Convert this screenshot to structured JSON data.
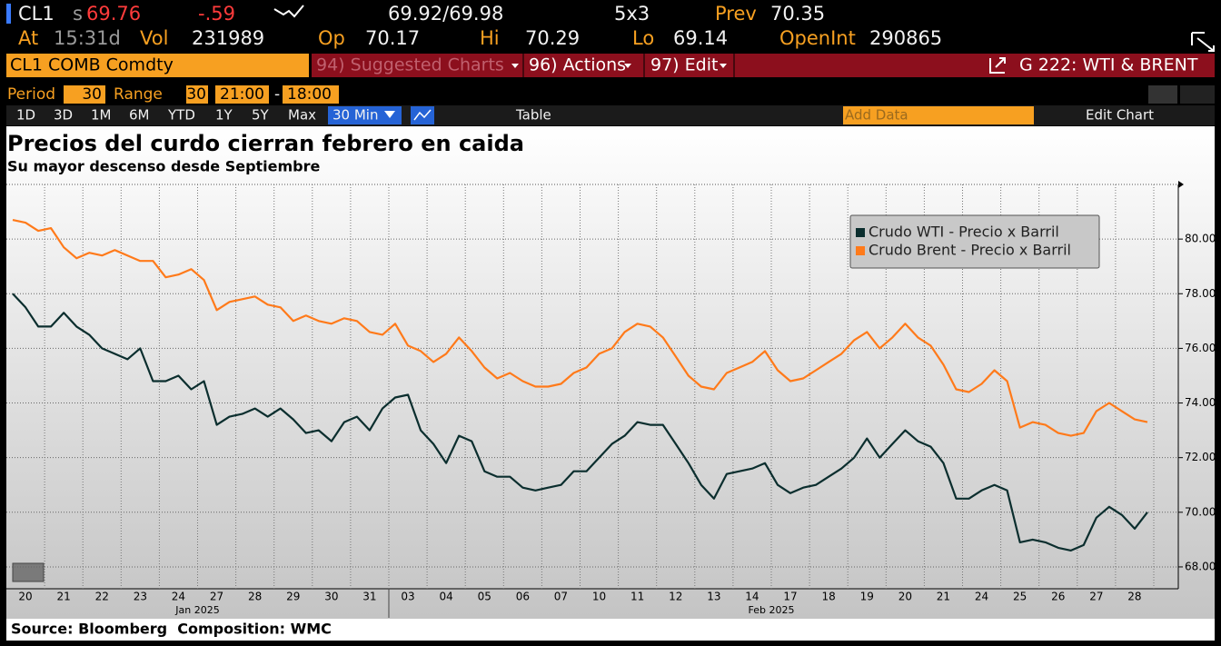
{
  "header": {
    "ticker": "CL1",
    "last_prefix": "s",
    "last": "69.76",
    "change": "-.59",
    "bid_ask": "69.92/69.98",
    "size": "5x3",
    "prev_label": "Prev",
    "prev": "70.35",
    "at_label": "At",
    "at": "15:31d",
    "vol_label": "Vol",
    "vol": "231989",
    "open_label": "Op",
    "open": "70.17",
    "high_label": "Hi",
    "high": "70.29",
    "low_label": "Lo",
    "low": "69.14",
    "oi_label": "OpenInt",
    "oi": "290865"
  },
  "toolbar": {
    "security": "CL1 COMB Comdty",
    "suggested": "94) Suggested Charts",
    "actions": "96) Actions",
    "edit": "97) Edit",
    "chart_name": "G 222: WTI & BRENT",
    "period_label": "Period",
    "period": "30",
    "range_label": "Range",
    "range": "30",
    "range_start": "21:00",
    "range_sep": "-",
    "range_end": "18:00",
    "buttons": [
      "1D",
      "3D",
      "1M",
      "6M",
      "YTD",
      "1Y",
      "5Y",
      "Max"
    ],
    "interval": "30 Min",
    "table": "Table",
    "add_data": "Add Data",
    "edit_chart": "Edit Chart"
  },
  "chart_data": {
    "type": "line",
    "title": "Precios del curdo cierran febrero en caida",
    "subtitle": "Su mayor descenso desde Septiembre",
    "categories": [
      null,
      "20",
      null,
      null,
      "21",
      null,
      null,
      "22",
      null,
      null,
      "23",
      null,
      null,
      "24",
      null,
      null,
      "27",
      null,
      null,
      "28",
      null,
      null,
      "29",
      null,
      null,
      "30",
      null,
      null,
      "31",
      null,
      null,
      "03",
      null,
      null,
      "04",
      null,
      null,
      "05",
      null,
      null,
      "06",
      null,
      null,
      "07",
      null,
      null,
      "10",
      null,
      null,
      "11",
      null,
      null,
      "12",
      null,
      null,
      "13",
      null,
      null,
      "14",
      null,
      null,
      "17",
      null,
      null,
      "18",
      null,
      null,
      "19",
      null,
      null,
      "20",
      null,
      null,
      "21",
      null,
      null,
      "24",
      null,
      null,
      "25",
      null,
      null,
      "26",
      null,
      null,
      "27",
      null,
      null,
      "28",
      null
    ],
    "month_labels": [
      "Jan 2025",
      "Feb 2025"
    ],
    "series": [
      {
        "name": "Crudo WTI - Precio x Barril",
        "color": "#0b2e2e",
        "values": [
          78.0,
          77.5,
          76.8,
          76.8,
          77.3,
          76.8,
          76.5,
          76.0,
          75.8,
          75.6,
          76.0,
          74.8,
          74.8,
          75.0,
          74.5,
          74.8,
          73.2,
          73.5,
          73.6,
          73.8,
          73.5,
          73.8,
          73.4,
          72.9,
          73.0,
          72.6,
          73.3,
          73.5,
          73.0,
          73.8,
          74.2,
          74.3,
          73.0,
          72.5,
          71.8,
          72.8,
          72.6,
          71.5,
          71.3,
          71.3,
          70.9,
          70.8,
          70.9,
          71.0,
          71.5,
          71.5,
          72.0,
          72.5,
          72.8,
          73.3,
          73.2,
          73.2,
          72.5,
          71.8,
          71.0,
          70.5,
          71.4,
          71.5,
          71.6,
          71.8,
          71.0,
          70.7,
          70.9,
          71.0,
          71.3,
          71.6,
          72.0,
          72.7,
          72.0,
          72.5,
          73.0,
          72.6,
          72.4,
          71.8,
          70.5,
          70.5,
          70.8,
          71.0,
          70.8,
          68.9,
          69.0,
          68.9,
          68.7,
          68.6,
          68.8,
          69.8,
          70.2,
          69.9,
          69.4,
          70.0
        ]
      },
      {
        "name": "Crudo Brent - Precio x Barril",
        "color": "#ff7a1a",
        "values": [
          80.7,
          80.6,
          80.3,
          80.4,
          79.7,
          79.3,
          79.5,
          79.4,
          79.6,
          79.4,
          79.2,
          79.2,
          78.6,
          78.7,
          78.9,
          78.5,
          77.4,
          77.7,
          77.8,
          77.9,
          77.6,
          77.5,
          77.0,
          77.2,
          77.0,
          76.9,
          77.1,
          77.0,
          76.6,
          76.5,
          76.9,
          76.1,
          75.9,
          75.5,
          75.8,
          76.4,
          75.9,
          75.3,
          74.9,
          75.1,
          74.8,
          74.6,
          74.6,
          74.7,
          75.1,
          75.3,
          75.8,
          76.0,
          76.6,
          76.9,
          76.8,
          76.4,
          75.7,
          75.0,
          74.6,
          74.5,
          75.1,
          75.3,
          75.5,
          75.9,
          75.2,
          74.8,
          74.9,
          75.2,
          75.5,
          75.8,
          76.3,
          76.6,
          76.0,
          76.4,
          76.9,
          76.4,
          76.1,
          75.4,
          74.5,
          74.4,
          74.7,
          75.2,
          74.8,
          73.1,
          73.3,
          73.2,
          72.9,
          72.8,
          72.9,
          73.7,
          74.0,
          73.7,
          73.4,
          73.3
        ]
      }
    ],
    "ylim": [
      67.2,
      82.0
    ],
    "yticks": [
      {
        "value": 68,
        "label": "68.00"
      },
      {
        "value": 70,
        "label": "70.00"
      },
      {
        "value": 72,
        "label": "72.00"
      },
      {
        "value": 74,
        "label": "74.00"
      },
      {
        "value": 76,
        "label": "76.00"
      },
      {
        "value": 78,
        "label": "78.00"
      },
      {
        "value": 80,
        "label": "80.00"
      }
    ],
    "grid": true,
    "legend": "upper right"
  },
  "footer": {
    "source": "Source: Bloomberg  Composition: WMC"
  }
}
